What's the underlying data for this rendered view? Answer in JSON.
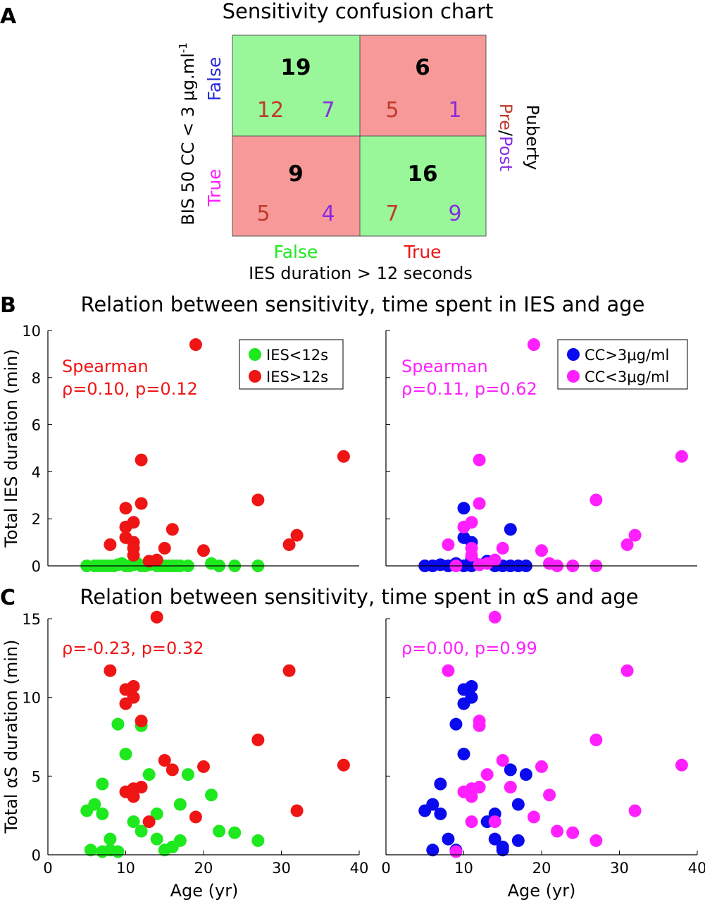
{
  "panel_letters": [
    "A",
    "B",
    "C"
  ],
  "colors": {
    "green": "#1ee81e",
    "red": "#ef1515",
    "blue": "#0a0aee",
    "magenta": "#ff1fff",
    "cell_green": "#99f799",
    "cell_red": "#f79999",
    "pre": "#c0392b",
    "post": "#8a2be2",
    "false_label": "#2727d8"
  },
  "confusion": {
    "title": "Sensitivity confusion chart",
    "ylabel": "BIS 50 CC < 3 μg.ml",
    "ylabel_sup": "-1",
    "row_labels": [
      "False",
      "True"
    ],
    "col_labels": [
      "False",
      "True"
    ],
    "xlabel": "IES duration > 12 seconds",
    "right_label_top": "Puberty",
    "right_label_pre": "Pre",
    "right_label_sep": "/",
    "right_label_post": "Post",
    "cells": [
      {
        "row": 0,
        "col": 0,
        "total": "19",
        "pre": "12",
        "post": "7",
        "type": "correct"
      },
      {
        "row": 0,
        "col": 1,
        "total": "6",
        "pre": "5",
        "post": "1",
        "type": "error"
      },
      {
        "row": 1,
        "col": 0,
        "total": "9",
        "pre": "5",
        "post": "4",
        "type": "error"
      },
      {
        "row": 1,
        "col": 1,
        "total": "16",
        "pre": "7",
        "post": "9",
        "type": "correct"
      }
    ]
  },
  "panel_b": {
    "title": "Relation between sensitivity, time spent in IES and age",
    "ylabel": "Total IES duration (min)",
    "left": {
      "stat_line1": "Spearman",
      "stat_line2": "ρ=0.10, p=0.12",
      "legend": [
        "IES<12s",
        "IES>12s"
      ]
    },
    "right": {
      "stat_line1": "Spearman",
      "stat_line2": "ρ=0.11, p=0.62",
      "legend": [
        "CC>3μg/ml",
        "CC<3μg/ml"
      ]
    }
  },
  "panel_c": {
    "title": "Relation between sensitivity, time spent in αS and age",
    "ylabel": "Total αS duration (min)",
    "xlabel": "Age (yr)",
    "left": {
      "stat_line1": "ρ=-0.23, p=0.32"
    },
    "right": {
      "stat_line1": "ρ=0.00, p=0.99"
    }
  },
  "chart_data": [
    {
      "type": "table",
      "title": "Sensitivity confusion chart",
      "ylabel": "BIS 50 CC < 3 μg.ml-1",
      "xlabel": "IES duration > 12 seconds",
      "rows": [
        "False",
        "True"
      ],
      "columns": [
        "False",
        "True"
      ],
      "totals": [
        [
          19,
          6
        ],
        [
          9,
          16
        ]
      ],
      "pre": [
        [
          12,
          5
        ],
        [
          5,
          7
        ]
      ],
      "post": [
        [
          7,
          1
        ],
        [
          4,
          9
        ]
      ]
    },
    {
      "type": "scatter",
      "title": "Relation between sensitivity, time spent in IES and age",
      "xlabel": "",
      "ylabel": "Total IES duration (min)",
      "xlim": [
        0,
        40
      ],
      "ylim": [
        0,
        10
      ],
      "xticks": [],
      "yticks": [
        0,
        2,
        4,
        6,
        8,
        10
      ],
      "legend_position": "top-right",
      "series": [
        {
          "name": "IES<12s",
          "color": "#1ee81e",
          "x": [
            5,
            6,
            6.5,
            7,
            7.5,
            8,
            8.5,
            9,
            9.5,
            10,
            10.5,
            11,
            11.5,
            12,
            12.5,
            13,
            14,
            14.5,
            15,
            15.5,
            16,
            16.5,
            17,
            18,
            21,
            22,
            24,
            27
          ],
          "y": [
            0,
            0,
            0,
            0,
            0,
            0,
            0,
            0.05,
            0.1,
            0,
            0,
            0.05,
            0.1,
            0,
            0,
            0.05,
            0,
            0,
            0,
            0,
            0,
            0,
            0,
            0,
            0.1,
            0,
            0,
            0
          ]
        },
        {
          "name": "IES>12s",
          "color": "#ef1515",
          "x": [
            8,
            10,
            10,
            10,
            11,
            11,
            11,
            11,
            12,
            12,
            13,
            14,
            15,
            16,
            19,
            20,
            27,
            31,
            32,
            38
          ],
          "y": [
            0.9,
            2.45,
            1.65,
            1.2,
            1.85,
            0.75,
            0.45,
            1.0,
            4.5,
            2.65,
            0.2,
            0.25,
            0.75,
            1.55,
            9.4,
            0.65,
            2.8,
            0.9,
            1.3,
            4.65
          ]
        }
      ]
    },
    {
      "type": "scatter",
      "xlabel": "",
      "ylabel": "Total IES duration (min)",
      "xlim": [
        0,
        40
      ],
      "ylim": [
        0,
        10
      ],
      "xticks": [],
      "yticks": [
        0,
        2,
        4,
        6,
        8,
        10
      ],
      "legend_position": "top-right",
      "series": [
        {
          "name": "CC>3μg/ml",
          "color": "#0a0aee",
          "x": [
            5,
            6,
            7,
            8,
            9,
            10,
            10,
            10,
            11,
            11,
            11,
            12,
            13,
            14,
            15,
            16,
            16,
            17,
            18
          ],
          "y": [
            0,
            0,
            0.05,
            0,
            0.1,
            2.45,
            1.2,
            0,
            0.3,
            1.0,
            0,
            0.05,
            0.2,
            0,
            0,
            1.55,
            0,
            0,
            0
          ]
        },
        {
          "name": "CC<3μg/ml",
          "color": "#ff1fff",
          "x": [
            8,
            9,
            10,
            11,
            11,
            11,
            12,
            12,
            12,
            13,
            14,
            15,
            19,
            20,
            21,
            22,
            24,
            27,
            27,
            31,
            32,
            38
          ],
          "y": [
            0.9,
            0,
            1.65,
            1.85,
            0.75,
            0.45,
            4.5,
            2.65,
            0.05,
            0.1,
            0.25,
            0.75,
            9.4,
            0.65,
            0.1,
            0,
            0,
            2.8,
            0,
            0.9,
            1.3,
            4.65
          ]
        }
      ]
    },
    {
      "type": "scatter",
      "title": "Relation between sensitivity, time spent in αS and age",
      "xlabel": "Age (yr)",
      "ylabel": "Total αS duration (min)",
      "xlim": [
        0,
        40
      ],
      "ylim": [
        0,
        15
      ],
      "xticks": [
        0,
        10,
        20,
        30,
        40
      ],
      "yticks": [
        0,
        5,
        10,
        15
      ],
      "series": [
        {
          "name": "IES<12s",
          "color": "#1ee81e",
          "x": [
            5,
            5.5,
            6,
            7,
            7,
            7,
            8,
            8,
            9,
            9,
            10,
            11,
            12,
            12,
            13,
            14,
            14,
            15,
            16,
            17,
            17,
            18,
            21,
            22,
            24,
            27
          ],
          "y": [
            2.8,
            0.3,
            3.2,
            4.5,
            2.6,
            0.2,
            1.0,
            0.3,
            8.3,
            0.2,
            6.4,
            2.1,
            1.5,
            8.2,
            5.1,
            2.6,
            1.0,
            0.3,
            0.5,
            3.2,
            0.9,
            5.1,
            3.8,
            1.5,
            1.4,
            0.9
          ]
        },
        {
          "name": "IES>12s",
          "color": "#ef1515",
          "x": [
            8,
            10,
            10,
            10,
            11,
            11,
            11,
            11,
            12,
            12,
            13,
            14,
            15,
            16,
            19,
            20,
            27,
            31,
            32,
            38
          ],
          "y": [
            11.7,
            10.5,
            9.6,
            4.0,
            10.7,
            10.0,
            4.2,
            3.7,
            8.5,
            4.3,
            2.1,
            15.1,
            6.0,
            5.4,
            2.4,
            5.6,
            7.3,
            11.7,
            2.8,
            5.7
          ]
        }
      ]
    },
    {
      "type": "scatter",
      "xlabel": "Age (yr)",
      "ylabel": "Total αS duration (min)",
      "xlim": [
        0,
        40
      ],
      "ylim": [
        0,
        15
      ],
      "xticks": [
        0,
        10,
        20,
        30,
        40
      ],
      "yticks": [
        0,
        5,
        10,
        15
      ],
      "series": [
        {
          "name": "CC>3μg/ml",
          "color": "#0a0aee",
          "x": [
            5,
            6,
            6,
            7,
            7,
            8,
            9,
            9,
            10,
            10,
            10,
            11,
            11,
            13,
            14,
            14,
            15,
            15,
            16,
            17,
            17,
            18
          ],
          "y": [
            2.8,
            3.2,
            0.3,
            4.5,
            2.6,
            1.0,
            8.3,
            0.3,
            10.5,
            9.6,
            6.4,
            10.7,
            10.0,
            2.1,
            2.6,
            1.0,
            0.3,
            0.5,
            5.4,
            3.2,
            0.9,
            5.1
          ]
        },
        {
          "name": "CC<3μg/ml",
          "color": "#ff1fff",
          "x": [
            8,
            9,
            10,
            11,
            11,
            11,
            12,
            12,
            12,
            13,
            14,
            14,
            15,
            16,
            19,
            20,
            21,
            22,
            24,
            27,
            27,
            31,
            32,
            38
          ],
          "y": [
            11.7,
            0.2,
            4.0,
            4.2,
            3.7,
            2.1,
            8.5,
            8.2,
            4.3,
            5.1,
            15.1,
            2.1,
            6.0,
            4.3,
            2.4,
            5.6,
            3.8,
            1.5,
            1.4,
            7.3,
            0.9,
            11.7,
            2.8,
            5.7
          ]
        }
      ]
    }
  ]
}
